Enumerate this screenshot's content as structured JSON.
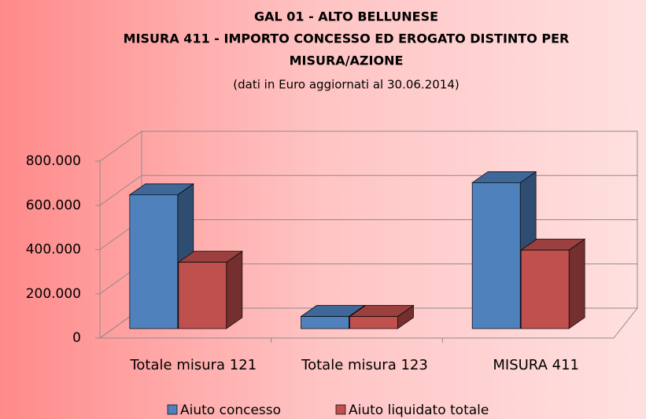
{
  "chart_data": {
    "type": "bar3d",
    "title": [
      "GAL 01 - ALTO BELLUNESE",
      "MISURA 411  - IMPORTO CONCESSO ED EROGATO DISTINTO PER",
      "MISURA/AZIONE"
    ],
    "subtitle": "(dati  in Euro aggiornati al 30.06.2014)",
    "categories": [
      "Totale misura 121",
      "Totale misura 123",
      "MISURA 411"
    ],
    "series": [
      {
        "name": "Aiuto concesso",
        "color": "#4f81bd",
        "values": [
          605000,
          55000,
          660000
        ]
      },
      {
        "name": "Aiuto liquidato totale",
        "color": "#c0504d",
        "values": [
          300000,
          55000,
          355000
        ]
      }
    ],
    "ylim": [
      0,
      800000
    ],
    "yticks": [
      {
        "value": 0,
        "label": "0"
      },
      {
        "value": 200000,
        "label": "200.000"
      },
      {
        "value": 400000,
        "label": "400.000"
      },
      {
        "value": 600000,
        "label": "600.000"
      },
      {
        "value": 800000,
        "label": "800.000"
      }
    ],
    "grid": true,
    "legend": "bottom"
  }
}
